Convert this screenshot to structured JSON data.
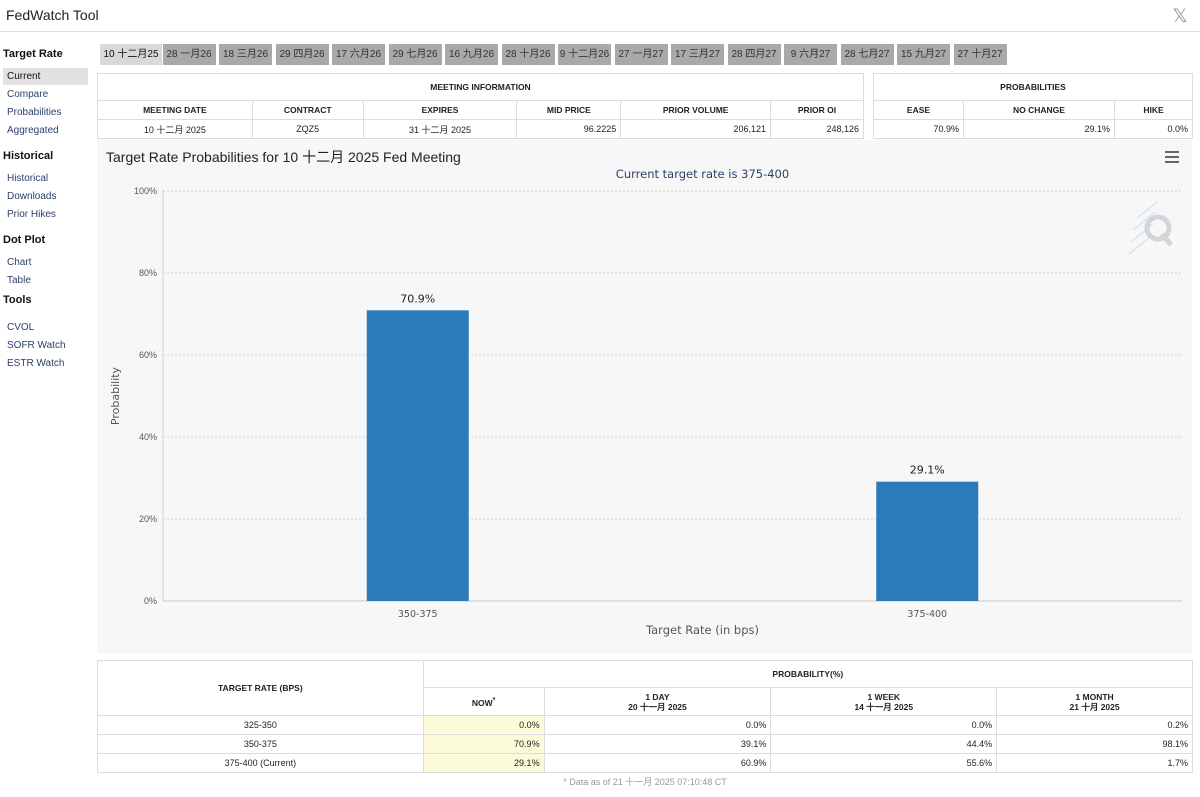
{
  "app": {
    "title": "FedWatch Tool",
    "close_glyph": "𝕏"
  },
  "sidebar": {
    "sections": [
      {
        "title": "Target Rate",
        "items": [
          "Current",
          "Compare",
          "Probabilities",
          "Aggregated"
        ]
      },
      {
        "title": "Historical",
        "items": [
          "Historical",
          "Downloads",
          "Prior Hikes"
        ]
      },
      {
        "title": "Dot Plot",
        "items": [
          "Chart",
          "Table"
        ]
      },
      {
        "title": "Tools",
        "items": [
          "CVOL",
          "SOFR Watch",
          "ESTR Watch"
        ]
      }
    ],
    "active_item": "Current"
  },
  "tabs": [
    "10 十二月25",
    "28 一月26",
    "18 三月26",
    "29 四月26",
    "17 六月26",
    "29 七月26",
    "16 九月26",
    "28 十月26",
    "9 十二月26",
    "27 一月27",
    "17 三月27",
    "28 四月27",
    "9 六月27",
    "28 七月27",
    "15 九月27",
    "27 十月27"
  ],
  "meeting_info": {
    "header": "MEETING INFORMATION",
    "columns": [
      "MEETING DATE",
      "CONTRACT",
      "EXPIRES",
      "MID PRICE",
      "PRIOR VOLUME",
      "PRIOR OI"
    ],
    "row": [
      "10 十二月 2025",
      "ZQZ5",
      "31 十二月 2025",
      "96.2225",
      "206,121",
      "248,126"
    ]
  },
  "probabilities": {
    "header": "PROBABILITIES",
    "columns": [
      "EASE",
      "NO CHANGE",
      "HIKE"
    ],
    "row": [
      "70.9%",
      "29.1%",
      "0.0%"
    ]
  },
  "chart": {
    "title": "Target Rate Probabilities for 10 十二月 2025 Fed Meeting"
  },
  "chart_data": {
    "type": "bar",
    "title": "Current target rate is 375-400",
    "xlabel": "Target Rate (in bps)",
    "ylabel": "Probability",
    "categories": [
      "350-375",
      "375-400"
    ],
    "values": [
      70.9,
      29.1
    ],
    "data_labels": [
      "70.9%",
      "29.1%"
    ],
    "ylim": [
      0,
      100
    ],
    "yticks": [
      "0%",
      "20%",
      "40%",
      "60%",
      "80%",
      "100%"
    ],
    "grid": true,
    "bar_color": "#2b7bba"
  },
  "bottom_table": {
    "rate_header": "TARGET RATE (BPS)",
    "prob_header": "PROBABILITY(%)",
    "cols": [
      {
        "l1": "NOW",
        "l2": "*"
      },
      {
        "l1": "1 DAY",
        "l2": "20 十一月 2025"
      },
      {
        "l1": "1 WEEK",
        "l2": "14 十一月 2025"
      },
      {
        "l1": "1 MONTH",
        "l2": "21 十月 2025"
      }
    ],
    "rows": [
      {
        "rate": "325-350",
        "vals": [
          "0.0%",
          "0.0%",
          "0.0%",
          "0.2%"
        ]
      },
      {
        "rate": "350-375",
        "vals": [
          "70.9%",
          "39.1%",
          "44.4%",
          "98.1%"
        ]
      },
      {
        "rate": "375-400 (Current)",
        "vals": [
          "29.1%",
          "60.9%",
          "55.6%",
          "1.7%"
        ]
      }
    ],
    "note": "* Data as of 21 十一月 2025 07:10:48 CT"
  }
}
